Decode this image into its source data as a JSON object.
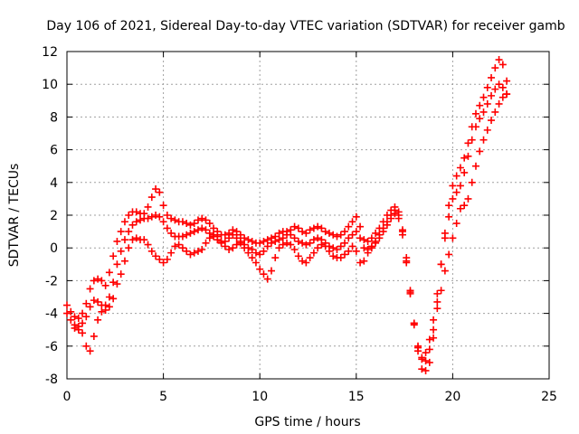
{
  "chart_data": {
    "type": "scatter",
    "title": "Day 106 of 2021, Sidereal Day-to-day VTEC variation (SDTVAR) for receiver gamb",
    "xlabel": "GPS time / hours",
    "ylabel": "SDTVAR / TECUs",
    "xlim": [
      0,
      25
    ],
    "ylim": [
      -8,
      12
    ],
    "xticks": [
      "0",
      "5",
      "10",
      "15",
      "20",
      "25"
    ],
    "yticks": [
      "-8",
      "-6",
      "-4",
      "-2",
      "0",
      "2",
      "4",
      "6",
      "8",
      "10",
      "12"
    ],
    "grid": true,
    "marker": "plus",
    "color": "#ff0000",
    "series": [
      {
        "x": [
          0.0,
          0.2,
          0.4,
          0.6,
          0.8,
          1.0,
          1.2,
          1.4,
          1.6,
          1.8,
          2.0,
          2.2,
          2.4,
          2.6,
          2.8,
          3.0,
          3.2,
          3.4,
          3.6,
          3.8,
          4.0,
          4.2,
          4.4,
          4.6,
          4.8,
          5.0,
          5.2,
          5.4,
          5.6,
          5.8,
          6.0,
          6.2,
          6.4,
          6.6,
          6.8,
          7.0,
          7.2,
          7.4,
          7.6,
          7.8,
          8.0,
          8.2,
          8.4,
          8.6,
          8.8,
          9.0,
          9.2,
          9.4,
          9.6,
          9.8,
          10.0,
          10.2,
          10.4,
          10.6,
          10.8,
          11.0,
          11.2,
          11.4,
          11.6,
          11.8,
          12.0,
          12.2,
          12.4,
          12.6,
          12.8,
          13.0,
          13.2,
          13.4,
          13.6,
          13.8,
          14.0,
          14.2,
          14.4,
          14.6,
          14.8,
          15.0,
          15.2,
          15.4,
          15.6,
          15.8,
          16.0,
          16.2,
          16.4,
          16.6,
          16.8,
          17.0,
          17.2,
          17.4,
          17.6,
          17.8,
          18.0,
          18.2,
          18.4,
          18.6,
          18.8,
          19.0,
          19.2,
          19.4,
          19.6,
          19.8,
          20.0,
          20.2,
          20.4,
          20.6,
          20.8,
          21.0,
          21.2,
          21.4,
          21.6,
          21.8,
          22.0,
          22.2,
          22.4,
          22.6,
          22.8
        ],
        "y": [
          -3.5,
          -3.9,
          -4.2,
          -4.3,
          -4.0,
          -3.4,
          -2.5,
          -2.0,
          -1.9,
          -2.0,
          -2.3,
          -1.5,
          -0.5,
          0.4,
          1.0,
          1.6,
          2.0,
          2.2,
          2.2,
          2.1,
          2.1,
          2.5,
          3.1,
          3.6,
          3.4,
          2.6,
          2.0,
          1.8,
          1.7,
          1.6,
          1.6,
          1.5,
          1.4,
          1.5,
          1.7,
          1.8,
          1.7,
          1.5,
          1.2,
          1.0,
          0.8,
          0.8,
          0.9,
          1.1,
          1.0,
          0.8,
          0.6,
          0.5,
          0.4,
          0.3,
          0.3,
          0.4,
          0.5,
          0.6,
          0.7,
          0.9,
          1.0,
          1.0,
          1.1,
          1.3,
          1.2,
          1.0,
          0.9,
          1.1,
          1.2,
          1.3,
          1.2,
          1.0,
          0.9,
          0.8,
          0.7,
          0.8,
          1.0,
          1.3,
          1.6,
          1.9,
          1.3,
          0.5,
          0.4,
          0.6,
          0.9,
          1.2,
          1.6,
          2.0,
          2.3,
          2.5,
          2.2,
          1.1,
          -0.6,
          -2.6,
          -4.6,
          -6.3,
          -7.4,
          -7.5,
          -7.0,
          -5.5,
          -3.3,
          -1.0,
          0.9,
          2.6,
          3.8,
          4.4,
          4.9,
          5.5,
          6.4,
          7.4,
          8.2,
          8.7,
          9.2,
          9.8,
          10.4,
          11.0,
          11.5,
          11.2,
          10.2
        ]
      },
      {
        "x": [
          0.0,
          0.2,
          0.4,
          0.6,
          0.8,
          1.0,
          1.2,
          1.4,
          1.6,
          1.8,
          2.0,
          2.2,
          2.4,
          2.6,
          2.8,
          3.0,
          3.2,
          3.4,
          3.6,
          3.8,
          4.0,
          4.2,
          4.4,
          4.6,
          4.8,
          5.0,
          5.2,
          5.4,
          5.6,
          5.8,
          6.0,
          6.2,
          6.4,
          6.6,
          6.8,
          7.0,
          7.2,
          7.4,
          7.6,
          7.8,
          8.0,
          8.2,
          8.4,
          8.6,
          8.8,
          9.0,
          9.2,
          9.4,
          9.6,
          9.8,
          10.0,
          10.2,
          10.4,
          10.6,
          10.8,
          11.0,
          11.2,
          11.4,
          11.6,
          11.8,
          12.0,
          12.2,
          12.4,
          12.6,
          12.8,
          13.0,
          13.2,
          13.4,
          13.6,
          13.8,
          14.0,
          14.2,
          14.4,
          14.6,
          14.8,
          15.0,
          15.2,
          15.4,
          15.6,
          15.8,
          16.0,
          16.2,
          16.4,
          16.6,
          16.8,
          17.0,
          17.2,
          17.4,
          17.6,
          17.8,
          18.0,
          18.2,
          18.4,
          18.6,
          18.8,
          19.0,
          19.2,
          19.4,
          19.6,
          19.8,
          20.0,
          20.2,
          20.4,
          20.6,
          20.8,
          21.0,
          21.2,
          21.4,
          21.6,
          21.8,
          22.0,
          22.2,
          22.4,
          22.6,
          22.8
        ],
        "y": [
          -4.0,
          -4.4,
          -4.7,
          -4.8,
          -4.6,
          -4.2,
          -3.6,
          -3.2,
          -3.3,
          -3.5,
          -3.5,
          -3.0,
          -2.1,
          -1.0,
          -0.2,
          0.5,
          1.0,
          1.4,
          1.6,
          1.7,
          1.8,
          1.8,
          1.9,
          2.0,
          1.9,
          1.6,
          1.2,
          0.9,
          0.7,
          0.7,
          0.7,
          0.8,
          0.9,
          1.0,
          1.1,
          1.2,
          1.1,
          0.9,
          0.7,
          0.5,
          0.3,
          0.4,
          0.6,
          0.8,
          0.6,
          0.4,
          0.2,
          0.0,
          -0.1,
          -0.3,
          -0.4,
          -0.2,
          0.1,
          0.3,
          0.4,
          0.5,
          0.6,
          0.8,
          0.8,
          0.6,
          0.4,
          0.3,
          0.2,
          0.3,
          0.5,
          0.6,
          0.5,
          0.3,
          0.1,
          0.0,
          -0.1,
          0.1,
          0.3,
          0.6,
          0.8,
          1.0,
          0.6,
          0.0,
          -0.1,
          0.1,
          0.4,
          0.8,
          1.2,
          1.6,
          2.0,
          2.3,
          2.0,
          1.0,
          -0.8,
          -2.8,
          -4.7,
          -6.1,
          -6.7,
          -6.4,
          -5.6,
          -4.4,
          -2.8,
          -1.0,
          0.6,
          1.9,
          3.0,
          3.4,
          3.8,
          4.6,
          5.6,
          6.6,
          7.4,
          7.9,
          8.3,
          8.8,
          9.3,
          9.7,
          10.0,
          9.8,
          9.4
        ]
      },
      {
        "x": [
          0.4,
          0.6,
          0.8,
          1.0,
          1.2,
          1.4,
          1.6,
          1.8,
          2.0,
          2.2,
          2.4,
          2.6,
          2.8,
          3.0,
          3.2,
          3.4,
          3.6,
          3.8,
          4.0,
          4.2,
          4.4,
          4.6,
          4.8,
          5.0,
          5.2,
          5.4,
          5.6,
          5.8,
          6.0,
          6.2,
          6.4,
          6.6,
          6.8,
          7.0,
          7.2,
          7.4,
          7.6,
          7.8,
          8.0,
          8.2,
          8.4,
          8.6,
          8.8,
          9.0,
          9.2,
          9.4,
          9.6,
          9.8,
          10.0,
          10.2,
          10.4,
          10.6,
          10.8,
          11.0,
          11.2,
          11.4,
          11.6,
          11.8,
          12.0,
          12.2,
          12.4,
          12.6,
          12.8,
          13.0,
          13.2,
          13.4,
          13.6,
          13.8,
          14.0,
          14.2,
          14.4,
          14.6,
          14.8,
          15.0,
          15.2,
          15.4,
          15.6,
          15.8,
          16.0,
          16.2,
          16.4,
          16.6,
          16.8,
          17.0,
          17.2,
          17.4,
          17.6,
          17.8,
          18.0,
          18.2,
          18.4,
          18.6,
          18.8,
          19.0,
          19.2,
          19.4,
          19.6,
          19.8,
          20.0,
          20.2,
          20.4,
          20.6,
          20.8,
          21.0,
          21.2,
          21.4,
          21.6,
          21.8,
          22.0,
          22.2,
          22.4,
          22.6,
          22.8
        ],
        "y": [
          -4.9,
          -5.0,
          -5.2,
          -6.0,
          -6.3,
          -5.4,
          -4.4,
          -3.9,
          -3.8,
          -3.6,
          -3.1,
          -2.2,
          -1.6,
          -0.8,
          0.0,
          0.5,
          0.6,
          0.5,
          0.5,
          0.2,
          -0.2,
          -0.5,
          -0.7,
          -0.9,
          -0.7,
          -0.3,
          0.1,
          0.2,
          0.0,
          -0.2,
          -0.4,
          -0.3,
          -0.2,
          -0.1,
          0.3,
          0.6,
          0.8,
          0.7,
          0.4,
          0.1,
          -0.1,
          0.0,
          0.2,
          0.3,
          0.0,
          -0.3,
          -0.6,
          -0.9,
          -1.3,
          -1.6,
          -1.9,
          -1.4,
          -0.6,
          0.0,
          0.2,
          0.3,
          0.2,
          -0.1,
          -0.5,
          -0.8,
          -0.9,
          -0.6,
          -0.3,
          0.0,
          0.2,
          0.1,
          -0.2,
          -0.5,
          -0.6,
          -0.6,
          -0.4,
          -0.2,
          0.1,
          -0.2,
          -0.9,
          -0.8,
          -0.3,
          0.0,
          0.3,
          0.6,
          1.0,
          1.4,
          1.8,
          2.1,
          1.8,
          0.8,
          -0.9,
          -2.7,
          -4.6,
          -6.0,
          -6.8,
          -6.9,
          -6.2,
          -5.0,
          -3.7,
          -2.6,
          -1.4,
          -0.4,
          0.6,
          1.5,
          2.4,
          2.6,
          3.0,
          4.0,
          5.0,
          5.9,
          6.6,
          7.2,
          7.8,
          8.3,
          8.8,
          9.2,
          9.4
        ]
      }
    ]
  }
}
